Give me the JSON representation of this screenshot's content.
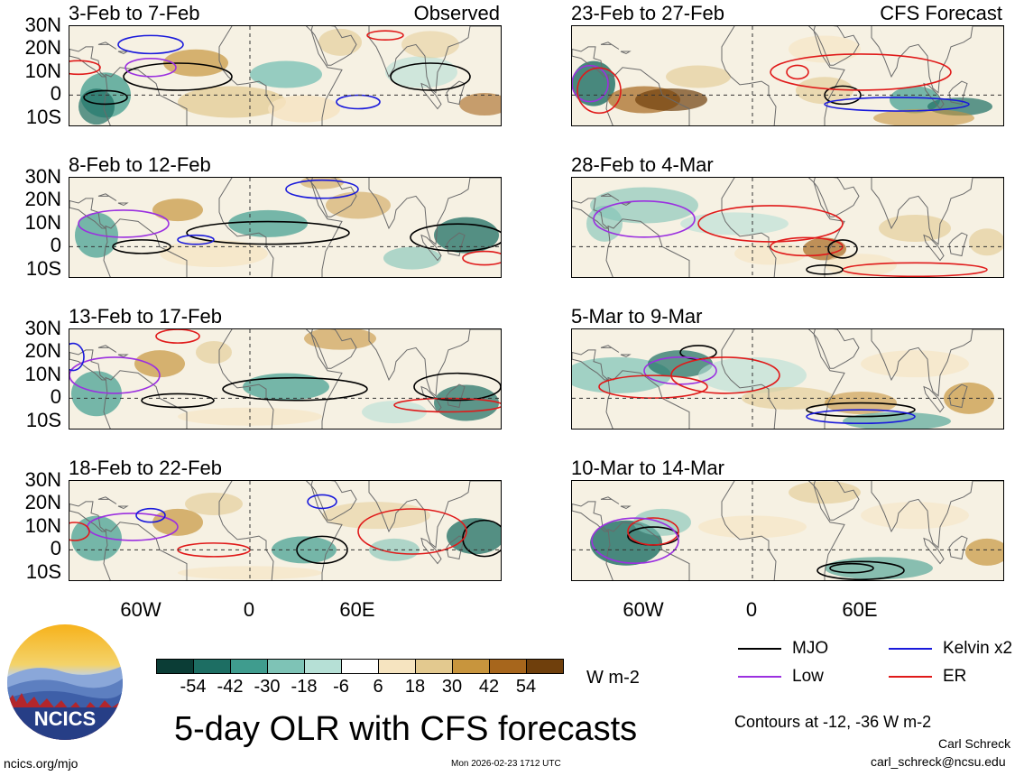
{
  "panels": [
    {
      "title": "3-Feb to 7-Feb",
      "tag": "Observed"
    },
    {
      "title": "23-Feb to 27-Feb",
      "tag": "CFS Forecast"
    },
    {
      "title": "8-Feb to 12-Feb",
      "tag": ""
    },
    {
      "title": "28-Feb to 4-Mar",
      "tag": ""
    },
    {
      "title": "13-Feb to 17-Feb",
      "tag": ""
    },
    {
      "title": "5-Mar to 9-Mar",
      "tag": ""
    },
    {
      "title": "18-Feb to 22-Feb",
      "tag": ""
    },
    {
      "title": "10-Mar to 14-Mar",
      "tag": ""
    }
  ],
  "lat_labels": [
    "30N",
    "20N",
    "10N",
    "0",
    "10S"
  ],
  "lon_labels": [
    "60W",
    "0",
    "60E"
  ],
  "colorbar": {
    "colors": [
      "#0b3d36",
      "#1d6e63",
      "#3f9c8e",
      "#7ec3b6",
      "#b6e0d6",
      "#ffffff",
      "#f6e4c0",
      "#e3c98f",
      "#c8953d",
      "#a7661c",
      "#6f3f0c"
    ],
    "ticks": [
      "-54",
      "-42",
      "-30",
      "-18",
      "-6",
      "6",
      "18",
      "30",
      "42",
      "54"
    ],
    "units": "W m-2"
  },
  "title": "5-day OLR with CFS forecasts",
  "legend": [
    {
      "label": "MJO",
      "color": "#000000"
    },
    {
      "label": "Kelvin x2",
      "color": "#1a1adb"
    },
    {
      "label": "Low",
      "color": "#9b30e0"
    },
    {
      "label": "ER",
      "color": "#e01a1a"
    }
  ],
  "contours_note": "Contours at -12, -36 W m-2",
  "author": "Carl Schreck",
  "email": "carl_schreck@ncsu.edu",
  "site": "ncics.org/mjo",
  "timestamp": "Mon 2026-02-23 1712 UTC",
  "logo_text": "NCICS"
}
